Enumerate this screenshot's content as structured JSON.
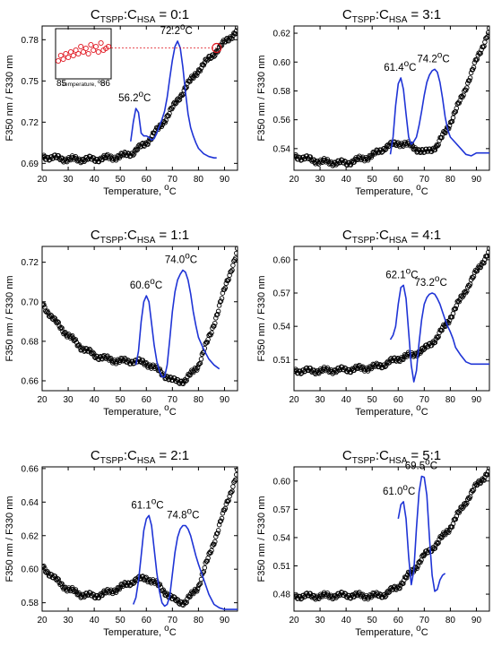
{
  "chart_data": [
    {
      "type": "line",
      "title_prefix": "C",
      "title_sub1": "TSPP",
      "title_mid": ":C",
      "title_sub2": "HSA",
      "title_ratio": "= 0:1",
      "xlabel_text": "Temperature, ",
      "xlabel_unit_sup": "o",
      "xlabel_unit": "C",
      "ylabel": "F350 nm / F330 nm",
      "xlim": [
        20,
        95
      ],
      "ylim": [
        0.685,
        0.79
      ],
      "xticks": [
        20,
        30,
        40,
        50,
        60,
        70,
        80,
        90
      ],
      "yticks": [
        0.69,
        0.72,
        0.75,
        0.78
      ],
      "ytick_labels": [
        "0.69",
        "0.72",
        "0.75",
        "0.78"
      ],
      "ratio": {
        "x": [
          20,
          30,
          40,
          50,
          55,
          60,
          65,
          70,
          75,
          80,
          85,
          90,
          95
        ],
        "y": [
          0.695,
          0.693,
          0.693,
          0.695,
          0.698,
          0.705,
          0.716,
          0.73,
          0.745,
          0.758,
          0.768,
          0.778,
          0.787
        ]
      },
      "derivative": {
        "x": [
          54,
          55,
          56,
          57,
          58,
          59,
          60,
          61,
          62,
          63,
          64,
          65,
          66,
          67,
          68,
          69,
          70,
          71,
          72,
          73,
          74,
          75,
          76,
          77,
          78,
          79,
          80,
          82,
          84,
          86,
          87
        ],
        "y": [
          0.706,
          0.72,
          0.73,
          0.727,
          0.712,
          0.71,
          0.71,
          0.709,
          0.707,
          0.708,
          0.712,
          0.717,
          0.722,
          0.728,
          0.738,
          0.752,
          0.765,
          0.775,
          0.779,
          0.774,
          0.76,
          0.742,
          0.726,
          0.716,
          0.71,
          0.705,
          0.701,
          0.697,
          0.695,
          0.694,
          0.694
        ]
      },
      "peaks": [
        {
          "x": 56.2,
          "y": 0.73,
          "value": "56.2",
          "sup": "o",
          "unit": "C"
        },
        {
          "x": 72.2,
          "y": 0.779,
          "value": "72.2",
          "sup": "o",
          "unit": "C"
        }
      ],
      "inset": {
        "xlabel_text": "Temperature, ",
        "xlabel_unit_sup": "o",
        "xlabel_unit": "C",
        "xlim": [
          85,
          86
        ],
        "xtick_labels": [
          "85",
          "86"
        ],
        "x": [
          85.0,
          85.05,
          85.1,
          85.15,
          85.2,
          85.25,
          85.3,
          85.35,
          85.4,
          85.45,
          85.5,
          85.55,
          85.6,
          85.65,
          85.7,
          85.75,
          85.8,
          85.85,
          85.9,
          85.95,
          86.0
        ],
        "y": [
          0.3,
          0.45,
          0.35,
          0.5,
          0.4,
          0.55,
          0.45,
          0.6,
          0.5,
          0.7,
          0.55,
          0.65,
          0.5,
          0.75,
          0.6,
          0.7,
          0.55,
          0.8,
          0.6,
          0.65,
          0.7
        ],
        "reference_y": 0.774,
        "marker_x": 87
      }
    },
    {
      "type": "line",
      "title_prefix": "C",
      "title_sub1": "TSPP",
      "title_mid": ":C",
      "title_sub2": "HSA",
      "title_ratio": "= 3:1",
      "xlabel_text": "Temperature, ",
      "xlabel_unit_sup": "o",
      "xlabel_unit": "C",
      "ylabel": "F350 nm / F330 nm",
      "xlim": [
        20,
        95
      ],
      "ylim": [
        0.525,
        0.625
      ],
      "xticks": [
        20,
        30,
        40,
        50,
        60,
        70,
        80,
        90
      ],
      "yticks": [
        0.54,
        0.56,
        0.58,
        0.6,
        0.62
      ],
      "ytick_labels": [
        "0.54",
        "0.56",
        "0.58",
        "0.60",
        "0.62"
      ],
      "ratio": {
        "x": [
          20,
          30,
          40,
          50,
          55,
          60,
          65,
          70,
          75,
          80,
          85,
          90,
          95
        ],
        "y": [
          0.535,
          0.531,
          0.53,
          0.535,
          0.541,
          0.544,
          0.542,
          0.537,
          0.542,
          0.558,
          0.578,
          0.601,
          0.622
        ]
      },
      "derivative": {
        "x": [
          57,
          58,
          59,
          60,
          61,
          62,
          63,
          64,
          65,
          66,
          67,
          68,
          69,
          70,
          71,
          72,
          73,
          74,
          75,
          76,
          77,
          78,
          79,
          80,
          82,
          84,
          86,
          88,
          90,
          92,
          95
        ],
        "y": [
          0.536,
          0.548,
          0.57,
          0.585,
          0.589,
          0.581,
          0.564,
          0.548,
          0.543,
          0.545,
          0.548,
          0.556,
          0.566,
          0.577,
          0.586,
          0.591,
          0.594,
          0.595,
          0.593,
          0.586,
          0.575,
          0.562,
          0.553,
          0.548,
          0.544,
          0.54,
          0.536,
          0.535,
          0.537,
          0.537,
          0.537
        ]
      },
      "peaks": [
        {
          "x": 61.4,
          "y": 0.589,
          "value": "61.4",
          "sup": "o",
          "unit": "C"
        },
        {
          "x": 74.2,
          "y": 0.595,
          "value": "74.2",
          "sup": "o",
          "unit": "C"
        }
      ]
    },
    {
      "type": "line",
      "title_prefix": "C",
      "title_sub1": "TSPP",
      "title_mid": ":C",
      "title_sub2": "HSA",
      "title_ratio": "= 1:1",
      "xlabel_text": "Temperature, ",
      "xlabel_unit_sup": "o",
      "xlabel_unit": "C",
      "ylabel": "F350 nm / F330 nm",
      "xlim": [
        20,
        95
      ],
      "ylim": [
        0.655,
        0.728
      ],
      "xticks": [
        20,
        30,
        40,
        50,
        60,
        70,
        80,
        90
      ],
      "yticks": [
        0.66,
        0.68,
        0.7,
        0.72
      ],
      "ytick_labels": [
        "0.66",
        "0.68",
        "0.70",
        "0.72"
      ],
      "ratio": {
        "x": [
          20,
          25,
          30,
          35,
          40,
          45,
          50,
          55,
          60,
          65,
          70,
          75,
          80,
          85,
          90,
          95
        ],
        "y": [
          0.699,
          0.69,
          0.683,
          0.677,
          0.673,
          0.671,
          0.67,
          0.67,
          0.669,
          0.665,
          0.66,
          0.66,
          0.668,
          0.685,
          0.706,
          0.726
        ]
      },
      "derivative": {
        "x": [
          56,
          57,
          58,
          59,
          60,
          61,
          62,
          63,
          64,
          65,
          66,
          67,
          68,
          69,
          70,
          71,
          72,
          73,
          74,
          75,
          76,
          77,
          78,
          79,
          80,
          82,
          84,
          86,
          88
        ],
        "y": [
          0.668,
          0.675,
          0.69,
          0.7,
          0.703,
          0.7,
          0.689,
          0.678,
          0.67,
          0.665,
          0.662,
          0.662,
          0.668,
          0.681,
          0.695,
          0.705,
          0.711,
          0.714,
          0.716,
          0.715,
          0.711,
          0.704,
          0.695,
          0.688,
          0.682,
          0.676,
          0.671,
          0.668,
          0.666
        ]
      },
      "peaks": [
        {
          "x": 60.6,
          "y": 0.703,
          "value": "60.6",
          "sup": "o",
          "unit": "C"
        },
        {
          "x": 74.0,
          "y": 0.716,
          "value": "74.0",
          "sup": "o",
          "unit": "C"
        }
      ]
    },
    {
      "type": "line",
      "title_prefix": "C",
      "title_sub1": "TSPP",
      "title_mid": ":C",
      "title_sub2": "HSA",
      "title_ratio": "= 4:1",
      "xlabel_text": "Temperature, ",
      "xlabel_unit_sup": "o",
      "xlabel_unit": "C",
      "ylabel": "F350 nm / F330 nm",
      "xlim": [
        20,
        95
      ],
      "ylim": [
        0.482,
        0.612
      ],
      "xticks": [
        20,
        30,
        40,
        50,
        60,
        70,
        80,
        90
      ],
      "yticks": [
        0.51,
        0.54,
        0.57,
        0.6
      ],
      "ytick_labels": [
        "0.51",
        "0.54",
        "0.57",
        "0.60"
      ],
      "ratio": {
        "x": [
          20,
          30,
          40,
          50,
          55,
          60,
          65,
          70,
          75,
          80,
          85,
          90,
          95
        ],
        "y": [
          0.5,
          0.5,
          0.501,
          0.503,
          0.506,
          0.511,
          0.514,
          0.519,
          0.53,
          0.548,
          0.569,
          0.589,
          0.608
        ]
      },
      "derivative": {
        "x": [
          57,
          58,
          59,
          60,
          61,
          62,
          63,
          64,
          65,
          66,
          67,
          68,
          69,
          70,
          71,
          72,
          73,
          74,
          75,
          76,
          77,
          78,
          79,
          80,
          81,
          82,
          84,
          86,
          88,
          90,
          92,
          95
        ],
        "y": [
          0.528,
          0.532,
          0.54,
          0.56,
          0.575,
          0.577,
          0.565,
          0.535,
          0.505,
          0.49,
          0.5,
          0.525,
          0.546,
          0.56,
          0.566,
          0.569,
          0.57,
          0.569,
          0.565,
          0.56,
          0.553,
          0.546,
          0.54,
          0.535,
          0.529,
          0.521,
          0.514,
          0.508,
          0.506,
          0.506,
          0.506,
          0.506
        ]
      },
      "peaks": [
        {
          "x": 62.1,
          "y": 0.577,
          "value": "62.1",
          "sup": "o",
          "unit": "C"
        },
        {
          "x": 73.2,
          "y": 0.57,
          "value": "73.2",
          "sup": "o",
          "unit": "C"
        }
      ]
    },
    {
      "type": "line",
      "title_prefix": "C",
      "title_sub1": "TSPP",
      "title_mid": ":C",
      "title_sub2": "HSA",
      "title_ratio": "= 2:1",
      "xlabel_text": "Temperature, ",
      "xlabel_unit_sup": "o",
      "xlabel_unit": "C",
      "ylabel": "F350 nm / F330 nm",
      "xlim": [
        20,
        95
      ],
      "ylim": [
        0.575,
        0.661
      ],
      "xticks": [
        20,
        30,
        40,
        50,
        60,
        70,
        80,
        90
      ],
      "yticks": [
        0.58,
        0.6,
        0.62,
        0.64,
        0.66
      ],
      "ytick_labels": [
        "0.58",
        "0.60",
        "0.62",
        "0.64",
        "0.66"
      ],
      "ratio": {
        "x": [
          20,
          25,
          30,
          35,
          40,
          45,
          50,
          55,
          60,
          65,
          70,
          75,
          80,
          85,
          90,
          95
        ],
        "y": [
          0.602,
          0.594,
          0.588,
          0.585,
          0.584,
          0.586,
          0.589,
          0.593,
          0.595,
          0.59,
          0.582,
          0.58,
          0.59,
          0.612,
          0.635,
          0.658
        ]
      },
      "derivative": {
        "x": [
          55,
          56,
          57,
          58,
          59,
          60,
          61,
          62,
          63,
          64,
          65,
          66,
          67,
          68,
          69,
          70,
          71,
          72,
          73,
          74,
          75,
          76,
          77,
          78,
          79,
          80,
          82,
          84,
          86,
          88,
          90,
          95
        ],
        "y": [
          0.579,
          0.583,
          0.593,
          0.608,
          0.623,
          0.63,
          0.632,
          0.626,
          0.612,
          0.598,
          0.587,
          0.58,
          0.578,
          0.579,
          0.584,
          0.597,
          0.61,
          0.619,
          0.624,
          0.626,
          0.626,
          0.624,
          0.62,
          0.614,
          0.608,
          0.603,
          0.594,
          0.585,
          0.579,
          0.577,
          0.576,
          0.576
        ]
      },
      "peaks": [
        {
          "x": 61.1,
          "y": 0.632,
          "value": "61.1",
          "sup": "o",
          "unit": "C"
        },
        {
          "x": 74.8,
          "y": 0.626,
          "value": "74.8",
          "sup": "o",
          "unit": "C"
        }
      ]
    },
    {
      "type": "line",
      "title_prefix": "C",
      "title_sub1": "TSPP",
      "title_mid": ":C",
      "title_sub2": "HSA",
      "title_ratio": "= 5:1",
      "xlabel_text": "Temperature, ",
      "xlabel_unit_sup": "o",
      "xlabel_unit": "C",
      "ylabel": "F350 nm / F330 nm",
      "xlim": [
        20,
        95
      ],
      "ylim": [
        0.462,
        0.615
      ],
      "xticks": [
        20,
        30,
        40,
        50,
        60,
        70,
        80,
        90
      ],
      "yticks": [
        0.48,
        0.51,
        0.54,
        0.57,
        0.6
      ],
      "ytick_labels": [
        "0.48",
        "0.51",
        "0.54",
        "0.57",
        "0.60"
      ],
      "ratio": {
        "x": [
          20,
          30,
          40,
          50,
          55,
          60,
          65,
          70,
          75,
          80,
          85,
          90,
          95
        ],
        "y": [
          0.478,
          0.478,
          0.479,
          0.478,
          0.48,
          0.488,
          0.503,
          0.521,
          0.534,
          0.551,
          0.574,
          0.595,
          0.611
        ]
      },
      "derivative": {
        "x": [
          60,
          61,
          62,
          63,
          64,
          65,
          66,
          67,
          68,
          69,
          70,
          71,
          72,
          73,
          74,
          75,
          76,
          77,
          78
        ],
        "y": [
          0.56,
          0.575,
          0.578,
          0.56,
          0.52,
          0.49,
          0.505,
          0.55,
          0.588,
          0.605,
          0.604,
          0.585,
          0.54,
          0.5,
          0.483,
          0.485,
          0.495,
          0.5,
          0.502
        ]
      },
      "peaks": [
        {
          "x": 61.0,
          "y": 0.578,
          "value": "61.0",
          "sup": "o",
          "unit": "C"
        },
        {
          "x": 69.5,
          "y": 0.605,
          "value": "69.5",
          "sup": "o",
          "unit": "C"
        }
      ]
    }
  ],
  "colors": {
    "ratio_series": "#000000",
    "derivative_series": "#1f34d6",
    "inset_marker": "#e0141e",
    "reference_line": "#e0141e"
  }
}
